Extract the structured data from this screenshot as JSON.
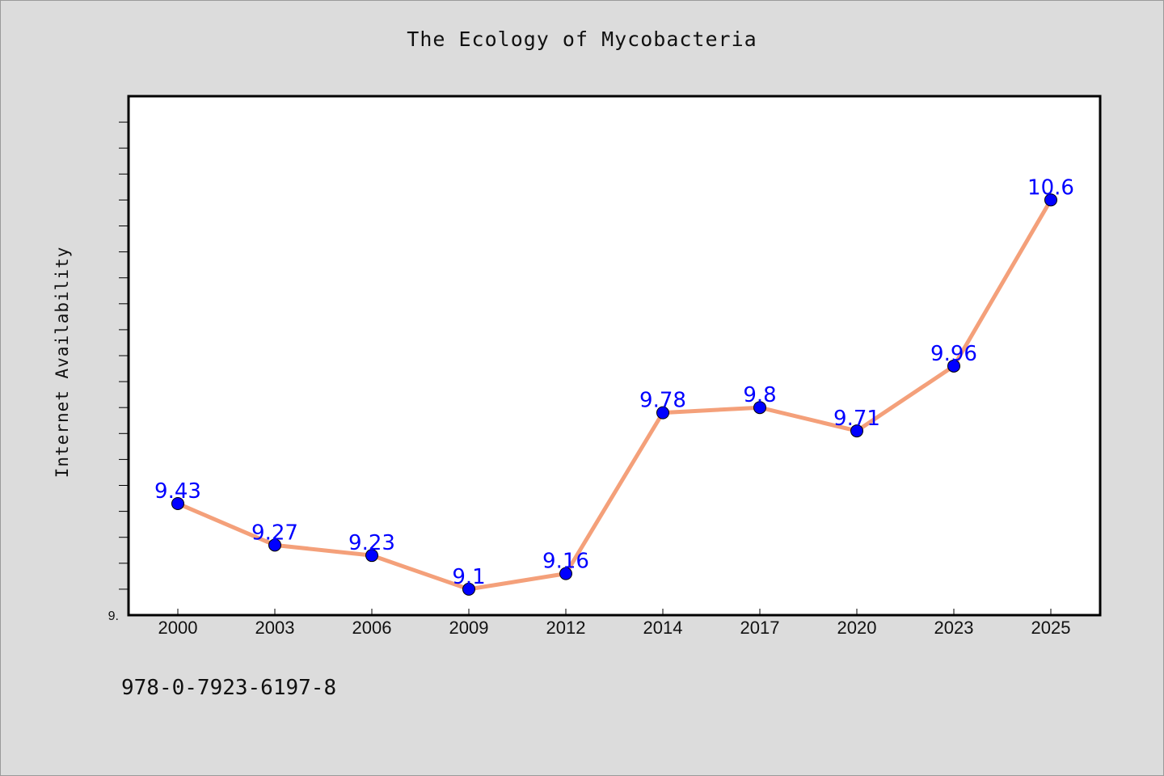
{
  "title": "The Ecology of Mycobacteria",
  "footer": "978-0-7923-6197-8",
  "colors": {
    "background": "#dcdcdc",
    "plot_background": "#ffffff",
    "line": "#f4a07a",
    "marker": "#0000ff",
    "label": "#0000ff"
  },
  "chart_data": {
    "type": "line",
    "title": "The Ecology of Mycobacteria",
    "xlabel": "",
    "ylabel": "Internet Availability",
    "categories": [
      "2000",
      "2003",
      "2006",
      "2009",
      "2012",
      "2014",
      "2017",
      "2020",
      "2023",
      "2025"
    ],
    "series": [
      {
        "values": [
          9.43,
          9.27,
          9.23,
          9.1,
          9.16,
          9.78,
          9.8,
          9.71,
          9.96,
          10.6
        ],
        "labels": [
          "9.43",
          "9.27",
          "9.23",
          "9.1",
          "9.16",
          "9.78",
          "9.8",
          "9.71",
          "9.96",
          "10.6"
        ]
      }
    ],
    "ylim": [
      9.0,
      11.0
    ],
    "y_tick_labels": [
      {
        "value": 9.0,
        "label": "9."
      }
    ],
    "y_minor_tick_step": 0.1,
    "grid": false,
    "legend": "none"
  }
}
